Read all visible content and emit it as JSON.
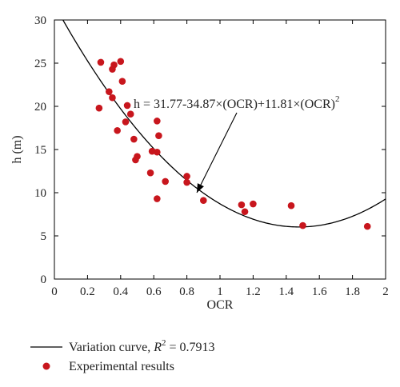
{
  "chart_data": {
    "type": "scatter",
    "title": "",
    "xlabel": "OCR",
    "ylabel": "h (m)",
    "xlim": [
      0,
      2
    ],
    "ylim": [
      0,
      30
    ],
    "xticks": [
      "0",
      "0.2",
      "0.4",
      "0.6",
      "0.8",
      "1",
      "1.2",
      "1.4",
      "1.6",
      "1.8",
      "2"
    ],
    "yticks": [
      "0",
      "5",
      "10",
      "15",
      "20",
      "25",
      "30"
    ],
    "xtick_values": [
      0,
      0.2,
      0.4,
      0.6,
      0.8,
      1.0,
      1.2,
      1.4,
      1.6,
      1.8,
      2.0
    ],
    "ytick_values": [
      0,
      5,
      10,
      15,
      20,
      25,
      30
    ],
    "grid": false,
    "legend_position": "bottom",
    "curve": {
      "name": "Variation curve",
      "r2_label": "R",
      "r2_sup": "2",
      "r2_value": " = 0.7913",
      "coefficients": [
        31.77,
        -34.87,
        11.81
      ],
      "color": "#000000"
    },
    "scatter": {
      "name": "Experimental results",
      "color": "#c8161d",
      "points": [
        {
          "x": 0.28,
          "y": 25.1
        },
        {
          "x": 0.4,
          "y": 25.2
        },
        {
          "x": 0.36,
          "y": 24.8
        },
        {
          "x": 0.35,
          "y": 24.3
        },
        {
          "x": 0.41,
          "y": 22.9
        },
        {
          "x": 0.33,
          "y": 21.7
        },
        {
          "x": 0.35,
          "y": 21.0
        },
        {
          "x": 0.44,
          "y": 20.1
        },
        {
          "x": 0.27,
          "y": 19.8
        },
        {
          "x": 0.46,
          "y": 19.1
        },
        {
          "x": 0.43,
          "y": 18.2
        },
        {
          "x": 0.62,
          "y": 18.3
        },
        {
          "x": 0.38,
          "y": 17.2
        },
        {
          "x": 0.63,
          "y": 16.6
        },
        {
          "x": 0.48,
          "y": 16.2
        },
        {
          "x": 0.59,
          "y": 14.8
        },
        {
          "x": 0.62,
          "y": 14.7
        },
        {
          "x": 0.5,
          "y": 14.2
        },
        {
          "x": 0.49,
          "y": 13.8
        },
        {
          "x": 0.58,
          "y": 12.3
        },
        {
          "x": 0.8,
          "y": 11.9
        },
        {
          "x": 0.67,
          "y": 11.3
        },
        {
          "x": 0.8,
          "y": 11.2
        },
        {
          "x": 0.62,
          "y": 9.3
        },
        {
          "x": 0.9,
          "y": 9.1
        },
        {
          "x": 1.13,
          "y": 8.6
        },
        {
          "x": 1.2,
          "y": 8.7
        },
        {
          "x": 1.15,
          "y": 7.8
        },
        {
          "x": 1.43,
          "y": 8.5
        },
        {
          "x": 1.5,
          "y": 6.2
        },
        {
          "x": 1.89,
          "y": 6.1
        }
      ]
    },
    "annotations": [
      {
        "text": "h = 31.77-34.87×(OCR)+11.81×(OCR)",
        "sup": "2",
        "target": {
          "x": 0.86,
          "y": 10.0
        }
      }
    ]
  }
}
